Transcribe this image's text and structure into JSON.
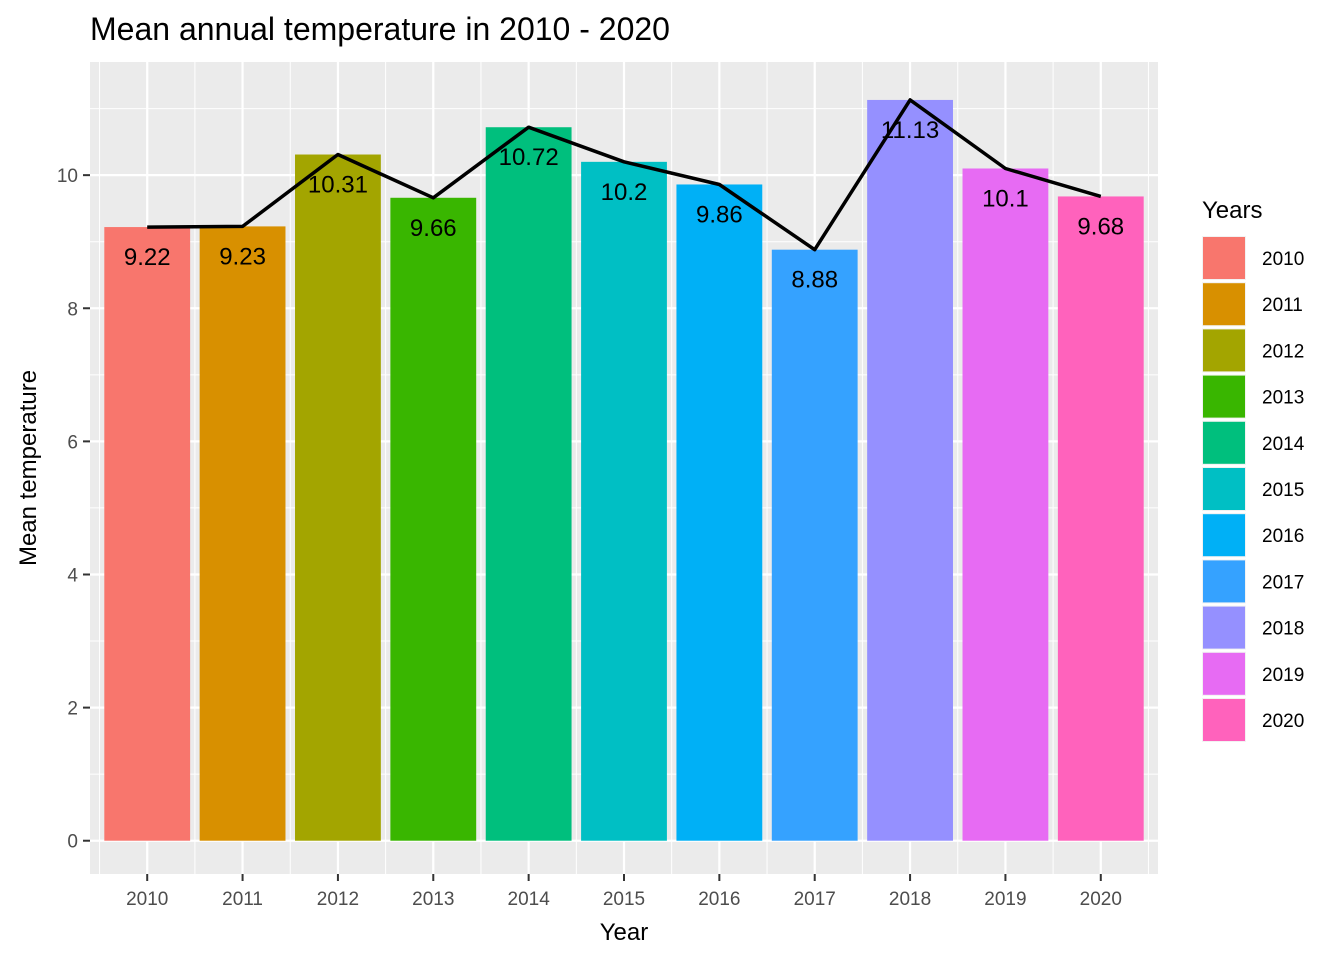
{
  "chart_data": {
    "type": "bar",
    "title": "Mean annual temperature in 2010 - 2020",
    "xlabel": "Year",
    "ylabel": "Mean temperature",
    "categories": [
      "2010",
      "2011",
      "2012",
      "2013",
      "2014",
      "2015",
      "2016",
      "2017",
      "2018",
      "2019",
      "2020"
    ],
    "values": [
      9.22,
      9.23,
      10.31,
      9.66,
      10.72,
      10.2,
      9.86,
      8.88,
      11.13,
      10.1,
      9.68
    ],
    "data_labels": [
      "9.22",
      "9.23",
      "10.31",
      "9.66",
      "10.72",
      "10.2",
      "9.86",
      "8.88",
      "11.13",
      "10.1",
      "9.68"
    ],
    "colors": [
      "#F8766D",
      "#D89000",
      "#A3A500",
      "#39B600",
      "#00BF7D",
      "#00BFC4",
      "#00B0F6",
      "#35A2FF",
      "#9590FF",
      "#E76BF3",
      "#FF62BC"
    ],
    "line_overlay": {
      "values": [
        9.22,
        9.23,
        10.31,
        9.66,
        10.72,
        10.2,
        9.86,
        8.88,
        11.13,
        10.1,
        9.68
      ],
      "color": "#000000"
    },
    "yticks": [
      0,
      2,
      4,
      6,
      8,
      10
    ],
    "ytick_labels": [
      "0",
      "2",
      "4",
      "6",
      "8",
      "10"
    ],
    "ylim": [
      -0.5,
      11.7
    ],
    "grid": true,
    "panel_background": "#EBEBEB",
    "legend": {
      "title": "Years",
      "position": "right",
      "entries": [
        "2010",
        "2011",
        "2012",
        "2013",
        "2014",
        "2015",
        "2016",
        "2017",
        "2018",
        "2019",
        "2020"
      ]
    }
  }
}
